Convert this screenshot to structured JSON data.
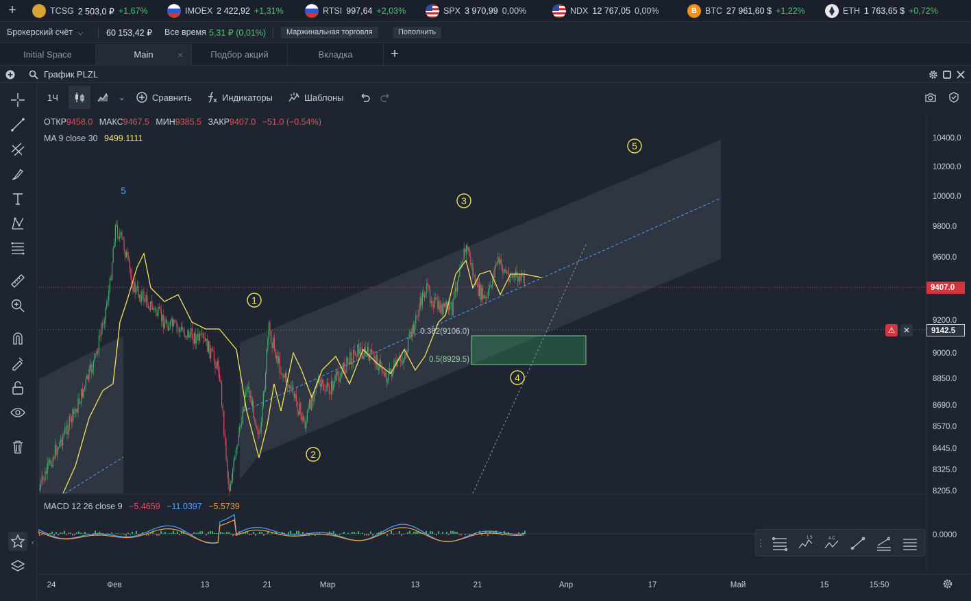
{
  "tickers": [
    {
      "icon": "gold-coin-icon",
      "symbol": "TCSG",
      "price": "2 503,0 ₽",
      "change": "+1,67%",
      "dir": "up"
    },
    {
      "icon": "russia-flag-icon",
      "symbol": "IMOEX",
      "price": "2 422,92",
      "change": "+1,31%",
      "dir": "up"
    },
    {
      "icon": "russia-flag-icon",
      "symbol": "RTSI",
      "price": "997,64",
      "change": "+2,03%",
      "dir": "up"
    },
    {
      "icon": "usa-flag-icon",
      "symbol": "SPX",
      "price": "3 970,99",
      "change": "0,00%",
      "dir": "flat"
    },
    {
      "icon": "usa-flag-icon",
      "symbol": "NDX",
      "price": "12 767,05",
      "change": "0,00%",
      "dir": "flat"
    },
    {
      "icon": "bitcoin-icon",
      "symbol": "BTC",
      "price": "27 961,60 $",
      "change": "+1,22%",
      "dir": "up",
      "glyph": "B"
    },
    {
      "icon": "ethereum-icon",
      "symbol": "ETH",
      "price": "1 763,65 $",
      "change": "+0,72%",
      "dir": "up"
    }
  ],
  "account": {
    "name": "Брокерский счёт",
    "balance": "60 153,42 ₽",
    "period": "Все время",
    "pnl": "5,31 ₽ (0,01%)",
    "margin_label": "Маржинальная торговля",
    "topup_label": "Пополнить"
  },
  "tabs": [
    {
      "label": "Initial Space",
      "active": false
    },
    {
      "label": "Main",
      "active": true,
      "close": "×"
    },
    {
      "label": "Подбор акций",
      "active": false
    },
    {
      "label": "Вкладка",
      "active": false
    }
  ],
  "widget": {
    "title": "График PLZL"
  },
  "toolbar": {
    "interval": "1Ч",
    "compare": "Сравнить",
    "indicators": "Индикаторы",
    "templates": "Шаблоны"
  },
  "legend": {
    "open_label": "ОТКР",
    "open": "9458.0",
    "high_label": "МАКС",
    "high": "9467.5",
    "low_label": "МИН",
    "low": "9385.5",
    "close_label": "ЗАКР",
    "close": "9407.0",
    "change": "−51.0 (−0.54%)",
    "ma_label": "MA 9 close 30",
    "ma_value": "9499.1111",
    "macd_label": "MACD 12 26 close 9",
    "macd_1": "−5.4659",
    "macd_2": "−11.0397",
    "macd_3": "−5.5739"
  },
  "chart_data": {
    "type": "candlestick",
    "instrument": "PLZL",
    "interval": "1Ч",
    "y_ticks": [
      "10400.0",
      "10200.0",
      "10000.0",
      "9800.0",
      "9600.0",
      "9200.0",
      "9000.0",
      "8850.0",
      "8690.0",
      "8570.0",
      "8445.0",
      "8325.0",
      "8205.0"
    ],
    "x_ticks": [
      "24",
      "Фев",
      "13",
      "21",
      "Мар",
      "13",
      "21",
      "Апр",
      "17",
      "Май",
      "15",
      "15:50"
    ],
    "last_price": "9407.0",
    "alert_price": "9142.5",
    "macd_zero": "0.0000",
    "fib_levels": [
      {
        "label": "0.382(9106.0)",
        "value": 9106.0
      },
      {
        "label": "0.5(8929.5)",
        "value": 8929.5
      }
    ],
    "wave_labels": [
      "5",
      "1",
      "2",
      "3",
      "4",
      "5"
    ],
    "accent_color": "#f2e45a",
    "up_color": "#3fb36b",
    "down_color": "#e0505a"
  }
}
